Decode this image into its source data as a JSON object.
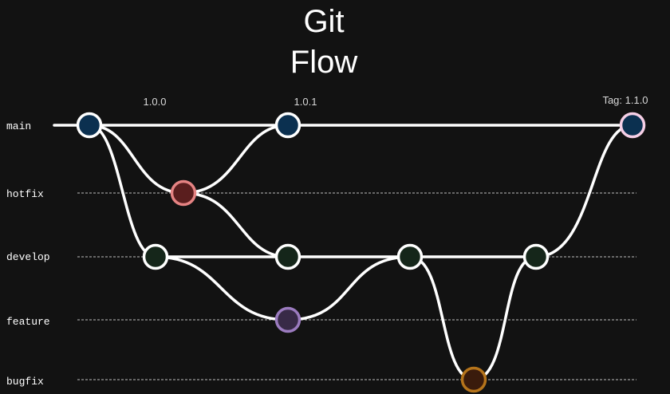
{
  "title": {
    "line1": "Git",
    "line2": "Flow"
  },
  "branches": [
    {
      "id": "main",
      "label": "main"
    },
    {
      "id": "hotfix",
      "label": "hotfix"
    },
    {
      "id": "develop",
      "label": "develop"
    },
    {
      "id": "feature",
      "label": "feature"
    },
    {
      "id": "bugfix",
      "label": "bugfix"
    }
  ],
  "tags": [
    {
      "label": "1.0.0"
    },
    {
      "label": "1.0.1"
    },
    {
      "label": "Tag: 1.1.0"
    }
  ],
  "colors": {
    "background": "#121212",
    "main_fill": "#0b3050",
    "hotfix_fill": "#5a1e1e",
    "hotfix_stroke": "#e58383",
    "develop_fill": "#15261a",
    "feature_fill": "#382a47",
    "feature_stroke": "#9b7bbf",
    "bugfix_fill": "#3a1b0c",
    "bugfix_stroke": "#b5741b",
    "release_stroke": "#f6cfe6",
    "edge": "#ffffff",
    "lane": "#bdbdbd"
  }
}
